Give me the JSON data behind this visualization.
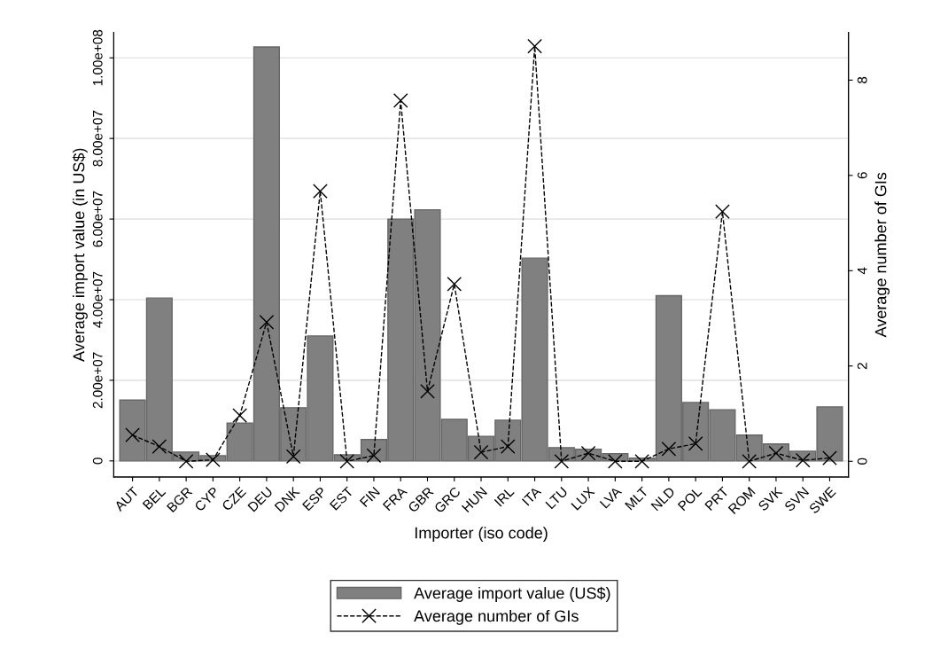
{
  "chart_data": {
    "type": "bar",
    "xlabel": "Importer (iso code)",
    "ylabel": "Average import value (in US$)",
    "y2label": "Average number of GIs",
    "categories": [
      "AUT",
      "BEL",
      "BGR",
      "CYP",
      "CZE",
      "DEU",
      "DNK",
      "ESP",
      "EST",
      "FIN",
      "FRA",
      "GBR",
      "GRC",
      "HUN",
      "IRL",
      "ITA",
      "LTU",
      "LUX",
      "LVA",
      "MLT",
      "NLD",
      "POL",
      "PRT",
      "ROM",
      "SVK",
      "SVN",
      "SWE"
    ],
    "series": [
      {
        "name": "Average import value (US$)",
        "color": "#808080",
        "values": [
          15100000,
          40400000,
          2200000,
          1300000,
          9400000,
          102700000,
          13200000,
          31000000,
          1500000,
          5300000,
          60000000,
          62300000,
          10300000,
          6100000,
          10100000,
          50300000,
          3300000,
          2900000,
          1800000,
          700000,
          41000000,
          14500000,
          12700000,
          6400000,
          4200000,
          2400000,
          13400000
        ]
      },
      {
        "name": "Average number of GIs",
        "type": "line",
        "axis": "y2",
        "color": "#000000",
        "marker": "cross",
        "line_style": "dashed",
        "values": [
          0.55,
          0.31,
          0,
          0.03,
          0.96,
          2.92,
          0.1,
          5.67,
          0,
          0.12,
          7.57,
          1.47,
          3.72,
          0.19,
          0.31,
          8.71,
          0,
          0.17,
          0,
          0,
          0.26,
          0.37,
          5.24,
          0,
          0.17,
          0.02,
          0.07
        ]
      }
    ],
    "ylim": [
      -4000000,
      106300000
    ],
    "yticks": [
      0,
      {
        "value": 20000000,
        "label": "2.00e+07"
      },
      {
        "value": 40000000,
        "label": "4.00e+07"
      },
      {
        "value": 60000000,
        "label": "6.00e+07"
      },
      {
        "value": 80000000,
        "label": "8.00e+07"
      },
      {
        "value": 100000000,
        "label": "1.00e+08"
      }
    ],
    "y2lim": [
      -0.33,
      9.0
    ],
    "y2ticks": [
      0,
      2,
      4,
      6,
      8
    ],
    "grid": "y",
    "legend": "bottom"
  }
}
